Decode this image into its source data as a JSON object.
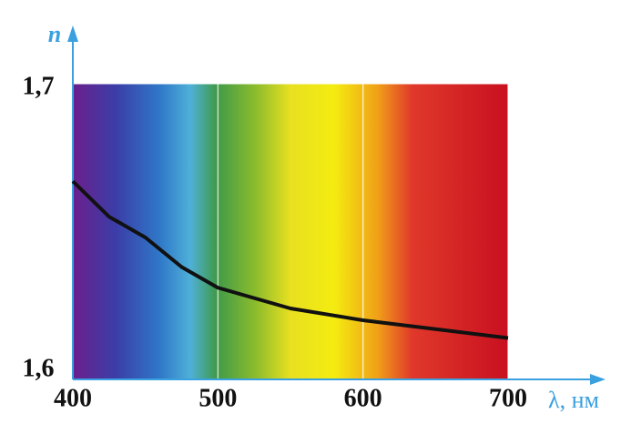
{
  "chart_data": {
    "type": "line",
    "x_label": "λ, нм",
    "y_label": "n",
    "x": [
      400,
      425,
      450,
      475,
      500,
      550,
      600,
      650,
      700
    ],
    "values": [
      1.667,
      1.655,
      1.648,
      1.638,
      1.631,
      1.624,
      1.62,
      1.617,
      1.614
    ],
    "color": "#111111",
    "xlim": [
      400,
      700
    ],
    "xticks": [
      400,
      500,
      600,
      700
    ],
    "ylim": [
      1.6,
      1.7
    ],
    "yticks": [
      {
        "value": 1.6,
        "label": "1,6"
      },
      {
        "value": 1.7,
        "label": "1,7"
      }
    ],
    "grid": true
  }
}
